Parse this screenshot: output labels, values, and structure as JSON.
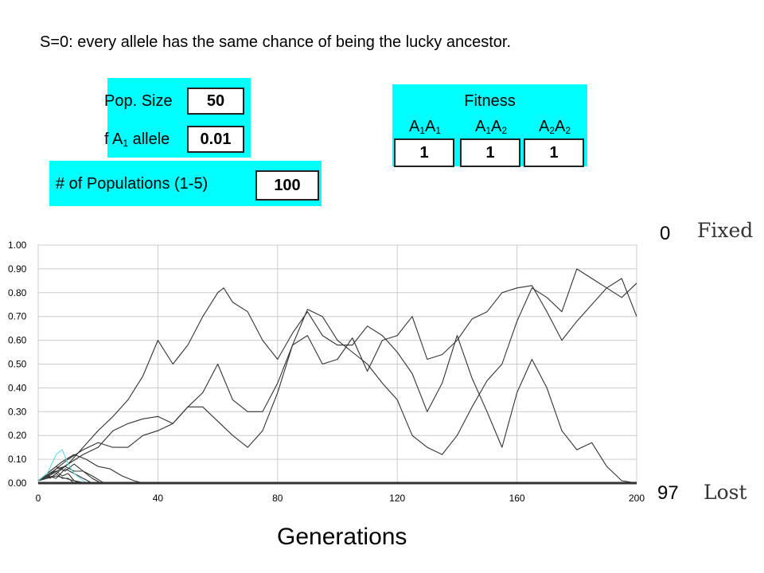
{
  "caption": "S=0: every allele has the same chance of being the lucky ancestor.",
  "controls": {
    "pop_size_label": "Pop. Size",
    "pop_size_value": "50",
    "allele_label_prefix": "f A",
    "allele_label_sub": "1",
    "allele_label_suffix": " allele",
    "allele_value": "0.01",
    "populations_label": "# of Populations (1-5)",
    "populations_value": "100"
  },
  "fitness": {
    "title": "Fitness",
    "genotypes": [
      {
        "a": "A",
        "s1": "1",
        "b": "A",
        "s2": "1",
        "value": "1"
      },
      {
        "a": "A",
        "s1": "1",
        "b": "A",
        "s2": "2",
        "value": "1"
      },
      {
        "a": "A",
        "s1": "2",
        "b": "A",
        "s2": "2",
        "value": "1"
      }
    ]
  },
  "counters": {
    "fixed_count": "0",
    "fixed_label": "Fixed",
    "lost_count": "97",
    "lost_label": "Lost"
  },
  "colors": {
    "panel": "#00ffff",
    "line": "#333333",
    "grid": "#cccccc",
    "cyan_line": "#66dddd"
  },
  "chart_data": {
    "type": "line",
    "xlabel": "Generations",
    "ylabel": "",
    "xlim": [
      0,
      200
    ],
    "ylim": [
      0,
      1
    ],
    "xticks": [
      "0",
      "40",
      "80",
      "120",
      "160",
      "200"
    ],
    "yticks": [
      "0.00",
      "0.10",
      "0.20",
      "0.30",
      "0.40",
      "0.50",
      "0.60",
      "0.70",
      "0.80",
      "0.90",
      "1.00"
    ],
    "grid": true,
    "series": [
      {
        "x": [
          0,
          5,
          10,
          15,
          20,
          25,
          30,
          35,
          40,
          45,
          50,
          55,
          60,
          62,
          65,
          70,
          75,
          80,
          85,
          90,
          95,
          100,
          105,
          110,
          115,
          120,
          125,
          130,
          135,
          140,
          145,
          150,
          155,
          160,
          165,
          170,
          175,
          180,
          185,
          190,
          195,
          200
        ],
        "values": [
          0.01,
          0.04,
          0.08,
          0.15,
          0.22,
          0.28,
          0.35,
          0.45,
          0.6,
          0.5,
          0.58,
          0.7,
          0.8,
          0.82,
          0.76,
          0.72,
          0.6,
          0.52,
          0.63,
          0.72,
          0.62,
          0.58,
          0.58,
          0.66,
          0.62,
          0.55,
          0.46,
          0.3,
          0.42,
          0.62,
          0.44,
          0.3,
          0.15,
          0.38,
          0.52,
          0.4,
          0.22,
          0.14,
          0.17,
          0.07,
          0.01,
          0.0
        ]
      },
      {
        "x": [
          0,
          5,
          10,
          15,
          20,
          25,
          30,
          35,
          40,
          45,
          50,
          55,
          60,
          65,
          70,
          75,
          80,
          85,
          90,
          95,
          100,
          105,
          110,
          115,
          120,
          125,
          130,
          135,
          140,
          145,
          150,
          155,
          160,
          165,
          170,
          175,
          180,
          185,
          190,
          195,
          200
        ],
        "values": [
          0.01,
          0.03,
          0.08,
          0.12,
          0.15,
          0.22,
          0.25,
          0.27,
          0.28,
          0.25,
          0.32,
          0.38,
          0.5,
          0.35,
          0.3,
          0.3,
          0.42,
          0.58,
          0.73,
          0.7,
          0.6,
          0.55,
          0.5,
          0.42,
          0.35,
          0.2,
          0.15,
          0.12,
          0.2,
          0.32,
          0.43,
          0.5,
          0.68,
          0.82,
          0.78,
          0.72,
          0.9,
          0.86,
          0.82,
          0.78,
          0.84
        ]
      },
      {
        "x": [
          0,
          5,
          10,
          15,
          20,
          25,
          30,
          35,
          40,
          45,
          50,
          55,
          60,
          65,
          70,
          75,
          80,
          85,
          90,
          95,
          100,
          105,
          110,
          115,
          120,
          125,
          130,
          135,
          140,
          145,
          150,
          155,
          160,
          165,
          170,
          175,
          180,
          185,
          190,
          195,
          200
        ],
        "values": [
          0.01,
          0.05,
          0.1,
          0.14,
          0.17,
          0.15,
          0.15,
          0.2,
          0.22,
          0.25,
          0.32,
          0.32,
          0.26,
          0.2,
          0.15,
          0.22,
          0.38,
          0.58,
          0.62,
          0.5,
          0.52,
          0.61,
          0.47,
          0.6,
          0.62,
          0.7,
          0.52,
          0.54,
          0.6,
          0.69,
          0.72,
          0.8,
          0.82,
          0.83,
          0.72,
          0.6,
          0.68,
          0.75,
          0.82,
          0.86,
          0.7
        ]
      },
      {
        "x": [
          0,
          4,
          8,
          12,
          16,
          20,
          24,
          28,
          32,
          35
        ],
        "values": [
          0.01,
          0.05,
          0.09,
          0.12,
          0.1,
          0.07,
          0.06,
          0.03,
          0.01,
          0.0
        ]
      },
      {
        "x": [
          0,
          3,
          6,
          9,
          12,
          15,
          18,
          21
        ],
        "values": [
          0.01,
          0.04,
          0.07,
          0.05,
          0.08,
          0.05,
          0.02,
          0.0
        ]
      },
      {
        "x": [
          0,
          3,
          6,
          9,
          12,
          15,
          18
        ],
        "values": [
          0.01,
          0.03,
          0.02,
          0.06,
          0.04,
          0.02,
          0.0
        ]
      },
      {
        "x": [
          0,
          2,
          4,
          6,
          8,
          10,
          12,
          14
        ],
        "values": [
          0.01,
          0.02,
          0.04,
          0.05,
          0.03,
          0.04,
          0.01,
          0.0
        ]
      },
      {
        "x": [
          0,
          3,
          6,
          9,
          12,
          15,
          18,
          22
        ],
        "values": [
          0.01,
          0.02,
          0.06,
          0.07,
          0.05,
          0.05,
          0.03,
          0.0
        ]
      },
      {
        "x": [
          0,
          2,
          4,
          6,
          8,
          10,
          12
        ],
        "values": [
          0.01,
          0.03,
          0.02,
          0.04,
          0.02,
          0.02,
          0.0
        ]
      },
      {
        "x": [
          0,
          3,
          6,
          9,
          12,
          16
        ],
        "values": [
          0.01,
          0.02,
          0.03,
          0.02,
          0.01,
          0.0
        ]
      },
      {
        "x": [
          0,
          3,
          6,
          8,
          10,
          12,
          14,
          16
        ],
        "values": [
          0.01,
          0.04,
          0.12,
          0.14,
          0.08,
          0.04,
          0.02,
          0.0
        ]
      },
      {
        "x": [
          0,
          200
        ],
        "values": [
          0.0,
          0.0
        ]
      }
    ]
  }
}
